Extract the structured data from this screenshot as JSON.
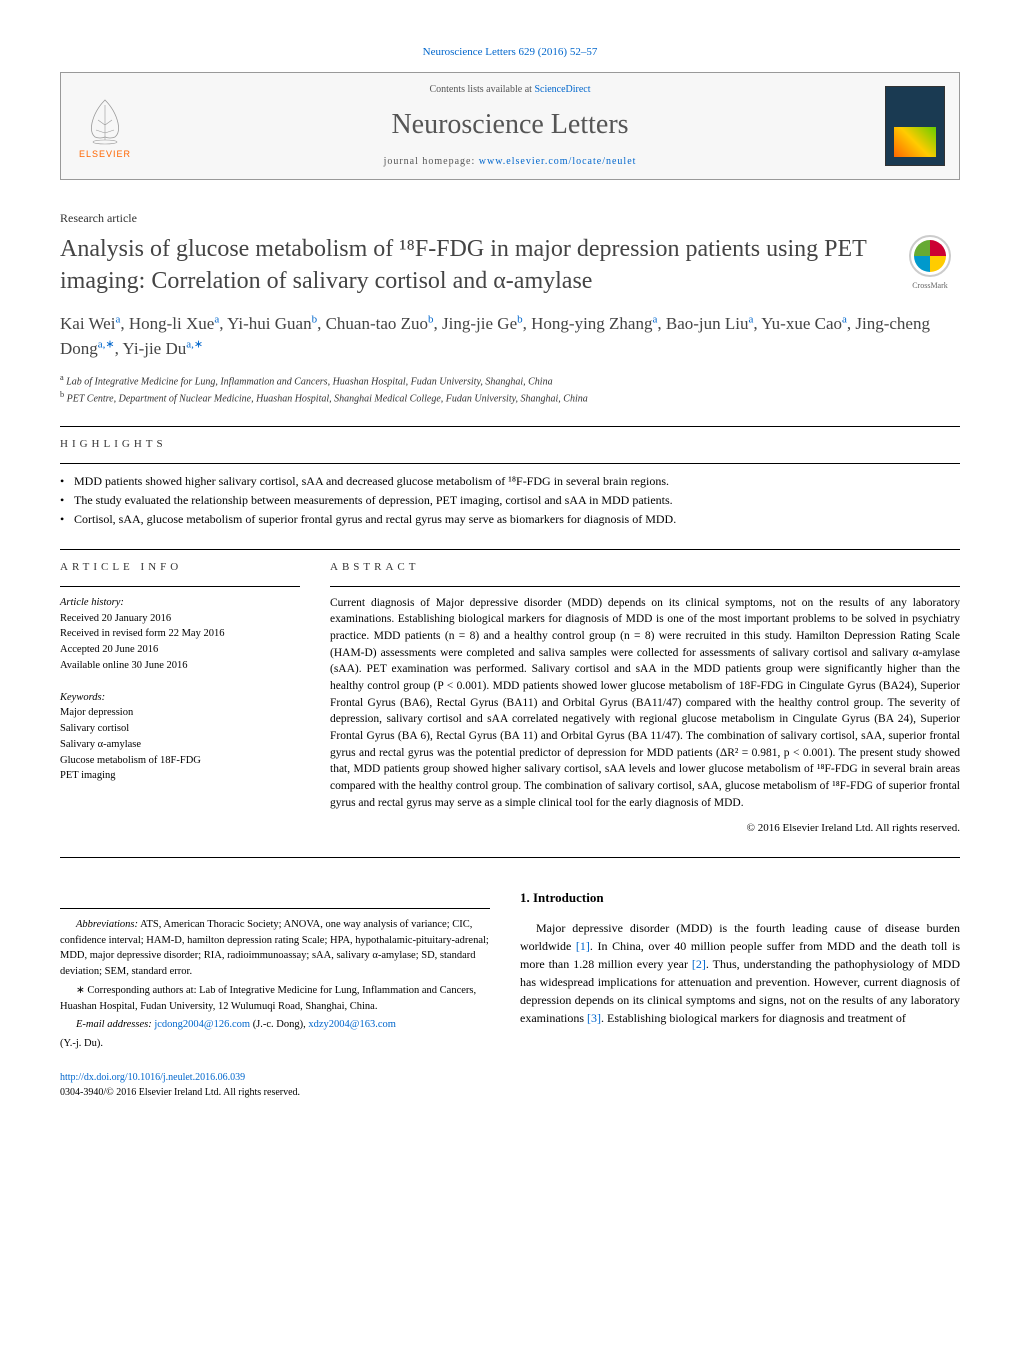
{
  "journal_ref": "Neuroscience Letters 629 (2016) 52–57",
  "header": {
    "contents_prefix": "Contents lists available at ",
    "contents_link": "ScienceDirect",
    "journal_name": "Neuroscience Letters",
    "homepage_prefix": "journal homepage: ",
    "homepage_link": "www.elsevier.com/locate/neulet",
    "elsevier_label": "ELSEVIER"
  },
  "article_type": "Research article",
  "title": "Analysis of glucose metabolism of ¹⁸F-FDG in major depression patients using PET imaging: Correlation of salivary cortisol and α-amylase",
  "crossmark_label": "CrossMark",
  "authors_html": "Kai Wei<sup>a</sup>, Hong-li Xue<sup>a</sup>, Yi-hui Guan<sup>b</sup>, Chuan-tao Zuo<sup>b</sup>, Jing-jie Ge<sup>b</sup>, Hong-ying Zhang<sup>a</sup>, Bao-jun Liu<sup>a</sup>, Yu-xue Cao<sup>a</sup>, Jing-cheng Dong<sup>a,∗</sup>, Yi-jie Du<sup>a,∗</sup>",
  "affiliations": [
    {
      "sup": "a",
      "text": "Lab of Integrative Medicine for Lung, Inflammation and Cancers, Huashan Hospital, Fudan University, Shanghai, China"
    },
    {
      "sup": "b",
      "text": "PET Centre, Department of Nuclear Medicine, Huashan Hospital, Shanghai Medical College, Fudan University, Shanghai, China"
    }
  ],
  "highlights_label": "highlights",
  "highlights": [
    "MDD patients showed higher salivary cortisol, sAA and decreased glucose metabolism of ¹⁸F-FDG in several brain regions.",
    "The study evaluated the relationship between measurements of depression, PET imaging, cortisol and sAA in MDD patients.",
    "Cortisol, sAA, glucose metabolism of superior frontal gyrus and rectal gyrus may serve as biomarkers for diagnosis of MDD."
  ],
  "article_info_label": "article info",
  "article_info": {
    "history_label": "Article history:",
    "received": "Received 20 January 2016",
    "revised": "Received in revised form 22 May 2016",
    "accepted": "Accepted 20 June 2016",
    "online": "Available online 30 June 2016",
    "keywords_label": "Keywords:",
    "keywords": [
      "Major depression",
      "Salivary cortisol",
      "Salivary α-amylase",
      "Glucose metabolism of 18F-FDG",
      "PET imaging"
    ]
  },
  "abstract_label": "abstract",
  "abstract_text": "Current diagnosis of Major depressive disorder (MDD) depends on its clinical symptoms, not on the results of any laboratory examinations. Establishing biological markers for diagnosis of MDD is one of the most important problems to be solved in psychiatry practice. MDD patients (n = 8) and a healthy control group (n = 8) were recruited in this study. Hamilton Depression Rating Scale (HAM-D) assessments were completed and saliva samples were collected for assessments of salivary cortisol and salivary α-amylase (sAA). PET examination was performed. Salivary cortisol and sAA in the MDD patients group were significantly higher than the healthy control group (P < 0.001). MDD patients showed lower glucose metabolism of 18F-FDG in Cingulate Gyrus (BA24), Superior Frontal Gyrus (BA6), Rectal Gyrus (BA11) and Orbital Gyrus (BA11/47) compared with the healthy control group. The severity of depression, salivary cortisol and sAA correlated negatively with regional glucose metabolism in Cingulate Gyrus (BA 24), Superior Frontal Gyrus (BA 6), Rectal Gyrus (BA 11) and Orbital Gyrus (BA 11/47). The combination of salivary cortisol, sAA, superior frontal gyrus and rectal gyrus was the potential predictor of depression for MDD patients (ΔR² = 0.981, p < 0.001). The present study showed that, MDD patients group showed higher salivary cortisol, sAA levels and lower glucose metabolism of ¹⁸F-FDG in several brain areas compared with the healthy control group. The combination of salivary cortisol, sAA, glucose metabolism of ¹⁸F-FDG of superior frontal gyrus and rectal gyrus may serve as a simple clinical tool for the early diagnosis of MDD.",
  "copyright": "© 2016 Elsevier Ireland Ltd. All rights reserved.",
  "intro": {
    "heading": "1. Introduction",
    "para": "Major depressive disorder (MDD) is the fourth leading cause of disease burden worldwide [1]. In China, over 40 million people suffer from MDD and the death toll is more than 1.28 million every year [2]. Thus, understanding the pathophysiology of MDD has widespread implications for attenuation and prevention. However, current diagnosis of depression depends on its clinical symptoms and signs, not on the results of any laboratory examinations [3]. Establishing biological markers for diagnosis and treatment of"
  },
  "footnotes": {
    "abbrev_label": "Abbreviations:",
    "abbrev_text": "ATS, American Thoracic Society; ANOVA, one way analysis of variance; CIC, confidence interval; HAM-D, hamilton depression rating Scale; HPA, hypothalamic-pituitary-adrenal; MDD, major depressive disorder; RIA, radioimmunoassay; sAA, salivary α-amylase; SD, standard deviation; SEM, standard error.",
    "corr_label": "∗ Corresponding authors at:",
    "corr_text": "Lab of Integrative Medicine for Lung, Inflammation and Cancers, Huashan Hospital, Fudan University, 12 Wulumuqi Road, Shanghai, China.",
    "email_label": "E-mail addresses:",
    "email1": "jcdong2004@126.com",
    "email1_name": "(J.-c. Dong),",
    "email2": "xdzy2004@163.com",
    "email2_name": "(Y.-j. Du).",
    "doi": "http://dx.doi.org/10.1016/j.neulet.2016.06.039",
    "issn": "0304-3940/© 2016 Elsevier Ireland Ltd. All rights reserved."
  },
  "colors": {
    "link": "#0066cc",
    "elsevier_orange": "#ff6600",
    "text_gray": "#444444",
    "border": "#999999"
  }
}
